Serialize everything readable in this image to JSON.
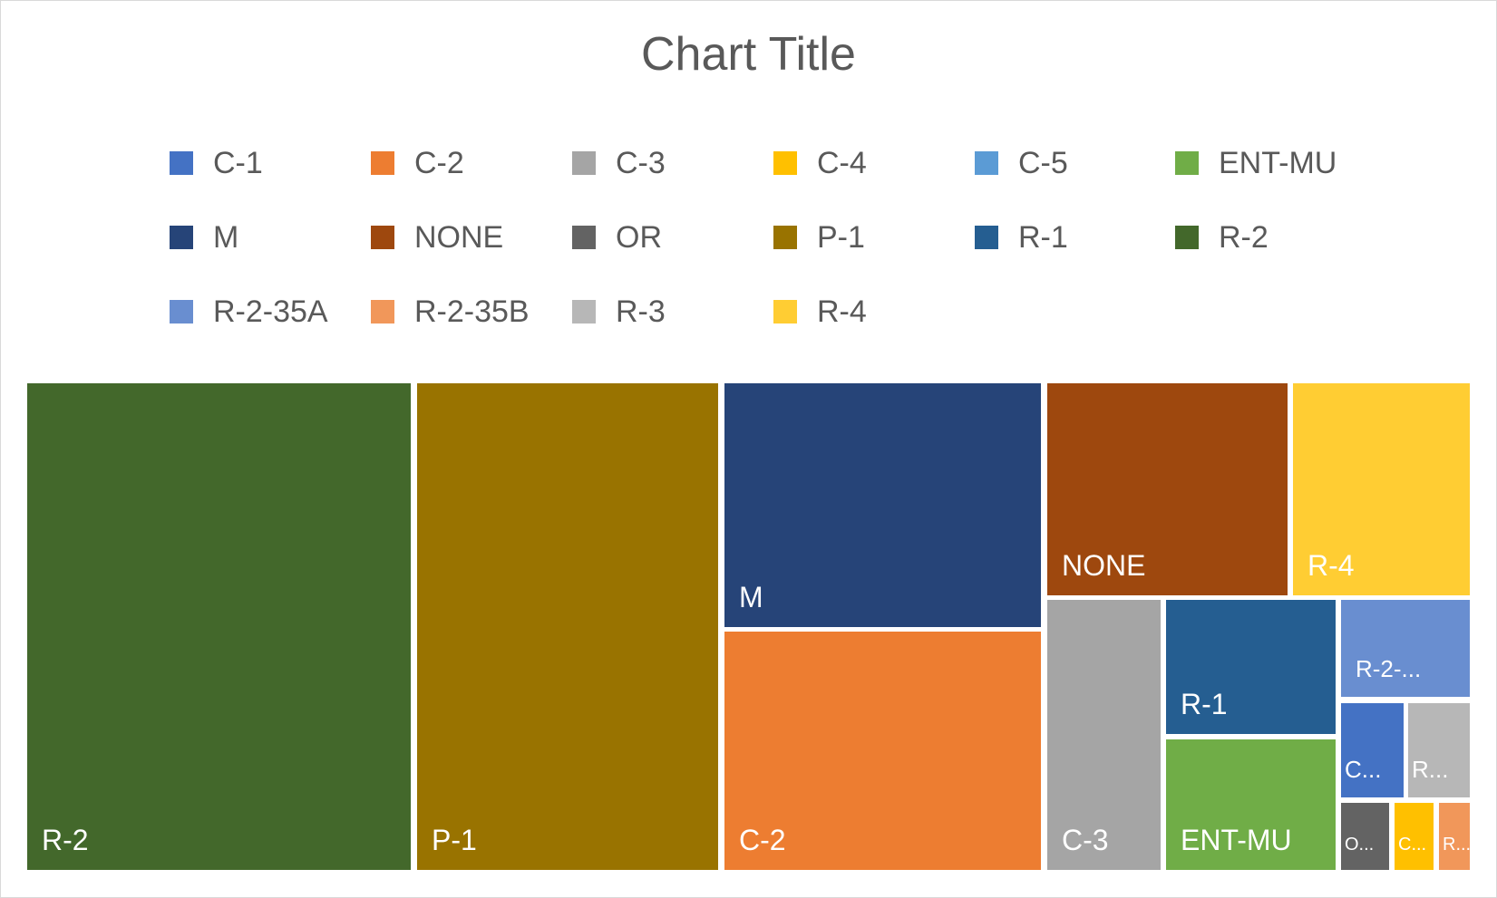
{
  "chart_data": {
    "type": "treemap",
    "title": "Chart Title",
    "legend": {
      "position": "top",
      "entries": [
        {
          "label": "C-1",
          "color": "#4472C4"
        },
        {
          "label": "C-2",
          "color": "#ED7D31"
        },
        {
          "label": "C-3",
          "color": "#A5A5A5"
        },
        {
          "label": "C-4",
          "color": "#FFC000"
        },
        {
          "label": "C-5",
          "color": "#5B9BD5"
        },
        {
          "label": "ENT-MU",
          "color": "#70AD47"
        },
        {
          "label": "M",
          "color": "#264478"
        },
        {
          "label": "NONE",
          "color": "#9E480E"
        },
        {
          "label": "OR",
          "color": "#636363"
        },
        {
          "label": "P-1",
          "color": "#997300"
        },
        {
          "label": "R-1",
          "color": "#255E91"
        },
        {
          "label": "R-2",
          "color": "#43682B"
        },
        {
          "label": "R-2-35A",
          "color": "#698ED0"
        },
        {
          "label": "R-2-35B",
          "color": "#F1975A"
        },
        {
          "label": "R-3",
          "color": "#B7B7B7"
        },
        {
          "label": "R-4",
          "color": "#FFCD33"
        }
      ]
    },
    "tiles": [
      {
        "name": "R-2",
        "label": "R-2",
        "value": 21.0,
        "color": "#43682B"
      },
      {
        "name": "P-1",
        "label": "P-1",
        "value": 16.5,
        "color": "#997300"
      },
      {
        "name": "M",
        "label": "M",
        "value": 8.9,
        "color": "#264478"
      },
      {
        "name": "C-2",
        "label": "C-2",
        "value": 8.7,
        "color": "#ED7D31"
      },
      {
        "name": "NONE",
        "label": "NONE",
        "value": 5.8,
        "color": "#9E480E"
      },
      {
        "name": "R-4",
        "label": "R-4",
        "value": 4.3,
        "color": "#FFCD33"
      },
      {
        "name": "C-3",
        "label": "C-3",
        "value": 3.7,
        "color": "#A5A5A5"
      },
      {
        "name": "R-1",
        "label": "R-1",
        "value": 2.9,
        "color": "#255E91"
      },
      {
        "name": "ENT-MU",
        "label": "ENT-MU",
        "value": 2.9,
        "color": "#70AD47"
      },
      {
        "name": "R-2-35A",
        "label": "R-2-...",
        "value": 1.6,
        "color": "#698ED0"
      },
      {
        "name": "C-1",
        "label": "C...",
        "value": 0.8,
        "color": "#4472C4"
      },
      {
        "name": "R-3",
        "label": "R...",
        "value": 0.8,
        "color": "#B7B7B7"
      },
      {
        "name": "OR",
        "label": "O...",
        "value": 0.4,
        "color": "#636363"
      },
      {
        "name": "C-4",
        "label": "C...",
        "value": 0.4,
        "color": "#FFC000"
      },
      {
        "name": "R-2-35B",
        "label": "R...",
        "value": 0.3,
        "color": "#F1975A"
      }
    ]
  }
}
